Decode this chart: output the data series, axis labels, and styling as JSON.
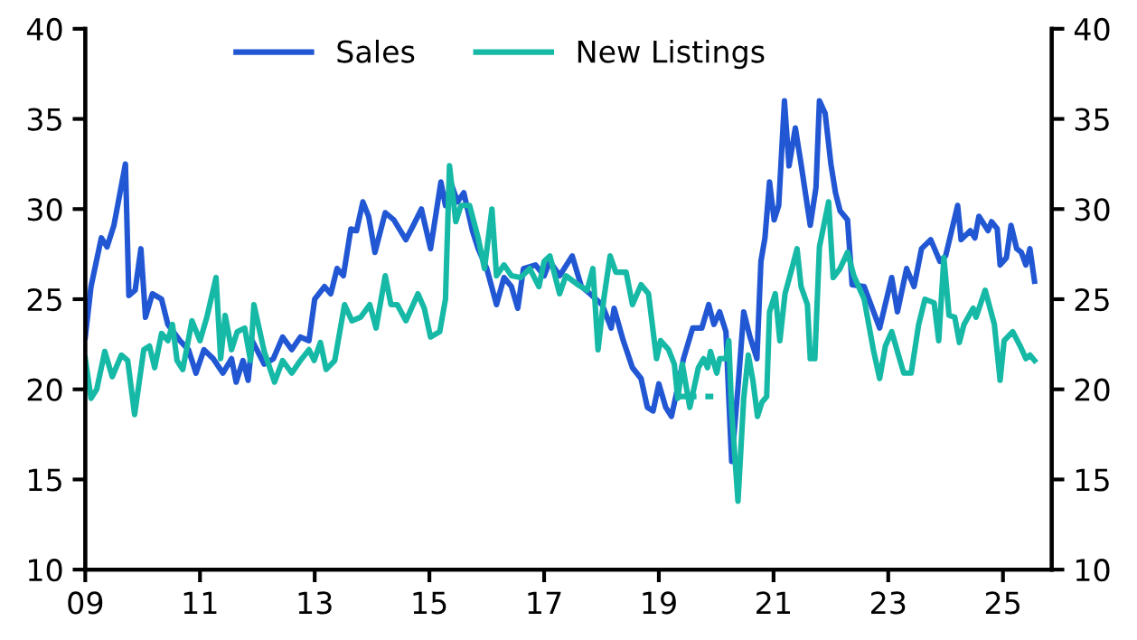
{
  "chart_data": {
    "type": "line",
    "xlim": [
      2009,
      2025.85
    ],
    "xticks": [
      {
        "value": 2009,
        "label": "09"
      },
      {
        "value": 2011,
        "label": "11"
      },
      {
        "value": 2013,
        "label": "13"
      },
      {
        "value": 2015,
        "label": "15"
      },
      {
        "value": 2017,
        "label": "17"
      },
      {
        "value": 2019,
        "label": "19"
      },
      {
        "value": 2021,
        "label": "21"
      },
      {
        "value": 2023,
        "label": "23"
      },
      {
        "value": 2025,
        "label": "25"
      }
    ],
    "ylim": [
      10,
      40
    ],
    "yticks": [
      10,
      15,
      20,
      25,
      30,
      35,
      40
    ],
    "y2lim": [
      10,
      40
    ],
    "y2ticks": [
      10,
      15,
      20,
      25,
      30,
      35,
      40
    ],
    "grid": false,
    "legend": "top",
    "line_style": "solid",
    "marker": "none",
    "series": [
      {
        "name": "Sales",
        "color": "#2257d4",
        "x": [
          2009.0,
          2009.1,
          2009.28,
          2009.38,
          2009.5,
          2009.7,
          2009.76,
          2009.87,
          2009.97,
          2010.05,
          2010.17,
          2010.33,
          2010.44,
          2010.65,
          2010.8,
          2010.93,
          2011.07,
          2011.23,
          2011.4,
          2011.55,
          2011.63,
          2011.75,
          2011.84,
          2011.91,
          2012.12,
          2012.28,
          2012.44,
          2012.6,
          2012.75,
          2012.9,
          2013.0,
          2013.17,
          2013.28,
          2013.39,
          2013.5,
          2013.63,
          2013.73,
          2013.84,
          2013.94,
          2014.05,
          2014.23,
          2014.38,
          2014.59,
          2014.72,
          2014.86,
          2015.02,
          2015.2,
          2015.28,
          2015.38,
          2015.49,
          2015.6,
          2015.75,
          2015.85,
          2016.0,
          2016.17,
          2016.3,
          2016.43,
          2016.54,
          2016.64,
          2016.85,
          2017.0,
          2017.1,
          2017.27,
          2017.49,
          2017.65,
          2017.8,
          2018.01,
          2018.17,
          2018.22,
          2018.38,
          2018.54,
          2018.69,
          2018.8,
          2018.9,
          2019.0,
          2019.12,
          2019.22,
          2019.33,
          2019.43,
          2019.59,
          2019.75,
          2019.87,
          2019.96,
          2020.06,
          2020.17,
          2020.22,
          2020.27,
          2020.38,
          2020.48,
          2020.59,
          2020.71,
          2020.78,
          2020.85,
          2020.93,
          2021.01,
          2021.09,
          2021.19,
          2021.27,
          2021.38,
          2021.48,
          2021.64,
          2021.74,
          2021.8,
          2021.9,
          2022.0,
          2022.08,
          2022.16,
          2022.29,
          2022.37,
          2022.58,
          2022.85,
          2023.06,
          2023.16,
          2023.32,
          2023.45,
          2023.58,
          2023.74,
          2023.9,
          2024.0,
          2024.21,
          2024.27,
          2024.43,
          2024.51,
          2024.58,
          2024.74,
          2024.8,
          2024.9,
          2024.95,
          2025.06,
          2025.14,
          2025.24,
          2025.32,
          2025.4,
          2025.47,
          2025.55
        ],
        "values": [
          22.9,
          25.7,
          28.4,
          27.9,
          29.1,
          32.5,
          25.2,
          25.5,
          27.8,
          24.0,
          25.3,
          25.0,
          23.6,
          22.7,
          22.2,
          20.9,
          22.2,
          21.7,
          20.9,
          21.7,
          20.4,
          21.6,
          20.5,
          22.7,
          21.4,
          21.7,
          22.9,
          22.2,
          22.9,
          22.7,
          25.0,
          25.7,
          25.3,
          26.7,
          26.3,
          28.9,
          28.8,
          30.4,
          29.6,
          27.6,
          29.8,
          29.4,
          28.3,
          29.1,
          30.0,
          27.8,
          31.5,
          30.2,
          31.4,
          30.4,
          30.9,
          28.8,
          27.8,
          26.7,
          24.7,
          26.2,
          25.7,
          24.5,
          26.7,
          26.9,
          26.3,
          27.1,
          26.3,
          27.4,
          25.7,
          25.3,
          24.7,
          23.4,
          24.5,
          22.7,
          21.2,
          20.6,
          19.0,
          18.8,
          20.3,
          19.0,
          18.5,
          20.1,
          21.7,
          23.4,
          23.4,
          24.7,
          23.6,
          24.3,
          23.2,
          19.5,
          16.0,
          20.1,
          24.3,
          22.9,
          21.7,
          27.1,
          28.4,
          31.5,
          29.4,
          30.2,
          36.0,
          32.4,
          34.5,
          32.5,
          29.1,
          31.2,
          36.0,
          35.3,
          32.5,
          30.9,
          29.9,
          29.4,
          25.8,
          25.7,
          23.4,
          26.2,
          24.3,
          26.7,
          25.7,
          27.8,
          28.3,
          27.1,
          27.4,
          30.2,
          28.3,
          28.8,
          28.4,
          29.6,
          28.8,
          29.3,
          28.9,
          26.9,
          27.3,
          29.1,
          27.8,
          27.6,
          26.9,
          27.8,
          26.0
        ]
      },
      {
        "name": "New Listings",
        "color": "#16b9a6",
        "x": [
          2009.0,
          2009.1,
          2009.2,
          2009.34,
          2009.47,
          2009.63,
          2009.74,
          2009.86,
          2010.02,
          2010.12,
          2010.21,
          2010.33,
          2010.44,
          2010.52,
          2010.6,
          2010.7,
          2010.86,
          2011.0,
          2011.12,
          2011.28,
          2011.36,
          2011.44,
          2011.55,
          2011.65,
          2011.78,
          2011.88,
          2011.94,
          2012.12,
          2012.3,
          2012.44,
          2012.6,
          2012.75,
          2012.9,
          2012.99,
          2013.1,
          2013.2,
          2013.35,
          2013.52,
          2013.65,
          2013.8,
          2013.96,
          2014.07,
          2014.23,
          2014.33,
          2014.44,
          2014.59,
          2014.8,
          2014.91,
          2015.02,
          2015.18,
          2015.28,
          2015.35,
          2015.46,
          2015.55,
          2015.7,
          2015.85,
          2015.96,
          2016.09,
          2016.17,
          2016.3,
          2016.43,
          2016.59,
          2016.75,
          2016.91,
          2017.0,
          2017.1,
          2017.27,
          2017.38,
          2017.59,
          2017.75,
          2017.85,
          2017.94,
          2018.04,
          2018.15,
          2018.25,
          2018.43,
          2018.54,
          2018.69,
          2018.82,
          2018.96,
          2019.03,
          2019.17,
          2019.27,
          2019.33,
          2019.41,
          2019.54,
          2019.69,
          2019.78,
          2019.85,
          2019.9,
          2020.01,
          2020.06,
          2020.17,
          2020.22,
          2020.27,
          2020.38,
          2020.48,
          2020.56,
          2020.64,
          2020.72,
          2020.8,
          2020.88,
          2020.93,
          2021.03,
          2021.11,
          2021.2,
          2021.32,
          2021.41,
          2021.48,
          2021.59,
          2021.64,
          2021.72,
          2021.8,
          2021.96,
          2022.04,
          2022.16,
          2022.29,
          2022.4,
          2022.58,
          2022.74,
          2022.85,
          2022.95,
          2023.06,
          2023.16,
          2023.27,
          2023.4,
          2023.53,
          2023.64,
          2023.8,
          2023.88,
          2023.97,
          2024.06,
          2024.16,
          2024.24,
          2024.32,
          2024.48,
          2024.53,
          2024.69,
          2024.85,
          2024.95,
          2025.02,
          2025.17,
          2025.3,
          2025.4,
          2025.47,
          2025.55
        ],
        "values": [
          21.7,
          19.5,
          20.0,
          22.1,
          20.7,
          21.9,
          21.6,
          18.6,
          22.2,
          22.4,
          21.2,
          23.1,
          22.7,
          23.6,
          21.6,
          21.1,
          23.8,
          22.7,
          24.0,
          26.2,
          21.7,
          24.1,
          22.2,
          23.2,
          23.4,
          21.6,
          24.7,
          22.1,
          20.4,
          21.6,
          20.9,
          21.6,
          22.2,
          21.6,
          22.6,
          21.1,
          21.6,
          24.7,
          23.8,
          24.0,
          24.7,
          23.4,
          26.3,
          24.7,
          24.7,
          23.8,
          25.3,
          24.5,
          22.9,
          23.2,
          25.0,
          32.4,
          29.3,
          30.2,
          30.2,
          28.4,
          26.7,
          30.0,
          26.3,
          26.9,
          26.3,
          26.2,
          26.7,
          25.7,
          27.1,
          27.4,
          25.3,
          26.3,
          25.8,
          25.5,
          26.7,
          22.2,
          25.0,
          27.4,
          26.5,
          26.5,
          24.7,
          25.8,
          25.3,
          21.7,
          22.7,
          22.2,
          21.4,
          19.5,
          21.4,
          19.0,
          21.2,
          21.7,
          21.2,
          22.1,
          20.9,
          21.7,
          21.7,
          22.7,
          18.8,
          13.8,
          19.5,
          21.9,
          20.5,
          18.5,
          19.3,
          19.6,
          24.3,
          25.3,
          22.7,
          25.3,
          26.7,
          27.8,
          25.7,
          24.7,
          21.7,
          21.7,
          27.9,
          30.4,
          26.2,
          26.7,
          27.6,
          26.3,
          25.0,
          22.2,
          20.6,
          22.4,
          23.2,
          22.1,
          20.9,
          20.9,
          23.6,
          25.0,
          24.8,
          22.7,
          27.3,
          24.1,
          24.0,
          22.6,
          23.6,
          24.5,
          24.0,
          25.5,
          23.6,
          20.5,
          22.7,
          23.2,
          22.4,
          21.7,
          21.9,
          21.6
        ]
      },
      {
        "color": "#16b9a6",
        "line_style": "dashed",
        "x": [
          2019.3,
          2019.95
        ],
        "values": [
          19.6,
          19.6
        ]
      }
    ]
  }
}
